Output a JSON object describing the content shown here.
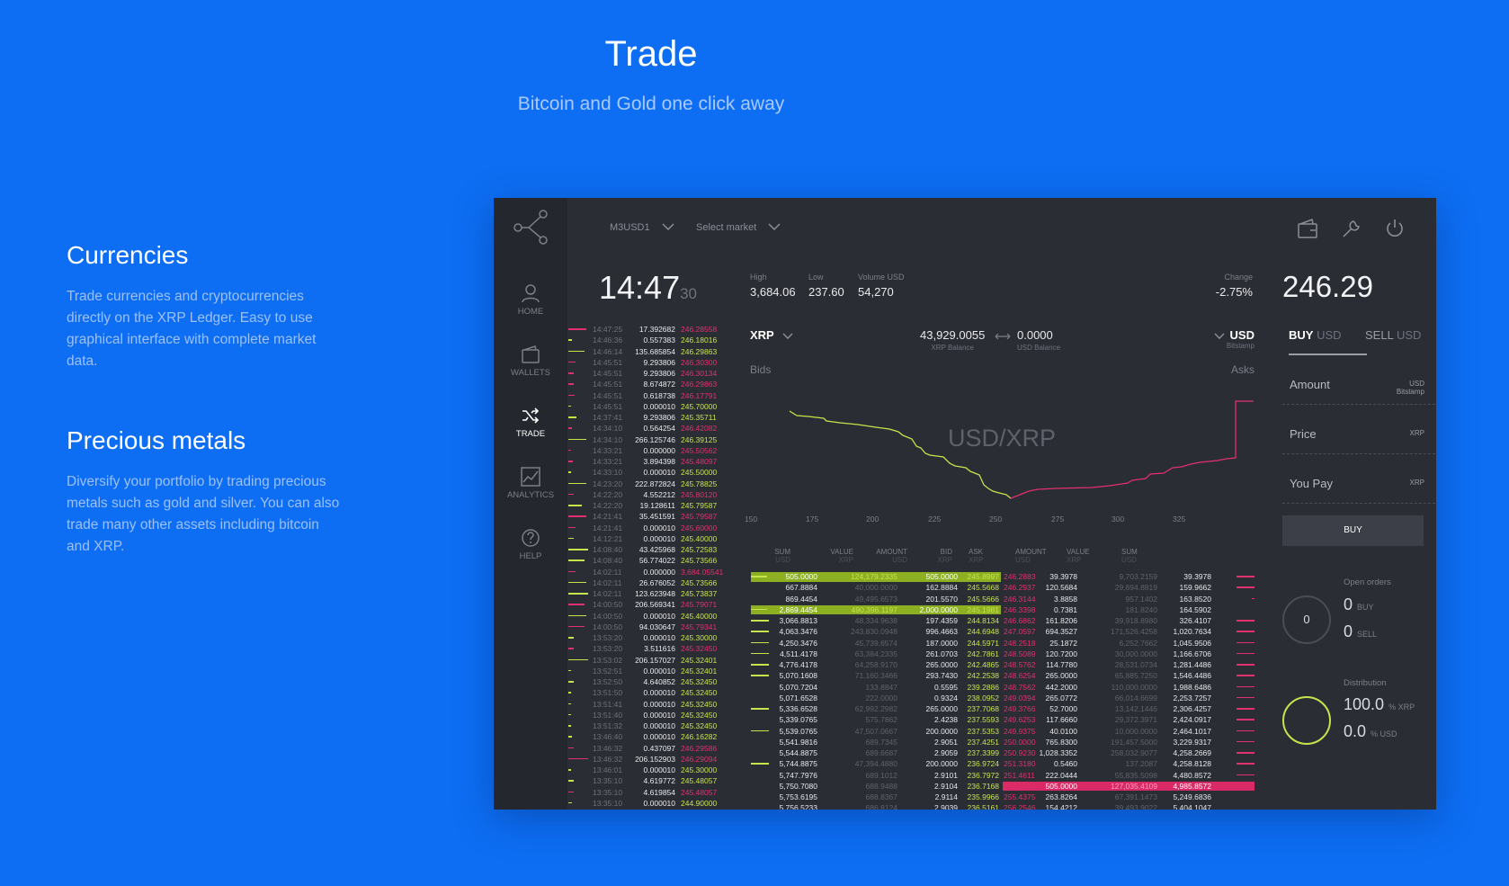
{
  "hero": {
    "title": "Trade",
    "subtitle": "Bitcoin and Gold one click away"
  },
  "features": [
    {
      "title": "Currencies",
      "text": "Trade currencies and cryptocurrencies directly on the XRP Ledger. Easy to use graphical interface with complete market data."
    },
    {
      "title": "Precious metals",
      "text": "Diversify your portfolio by trading precious metals such as gold and silver. You can also trade many other assets including bitcoin and XRP."
    }
  ],
  "app": {
    "sidebar": [
      {
        "label": "HOME",
        "icon": "user-icon"
      },
      {
        "label": "WALLETS",
        "icon": "wallet-icon"
      },
      {
        "label": "TRADE",
        "icon": "shuffle-icon"
      },
      {
        "label": "ANALYTICS",
        "icon": "chart-icon"
      },
      {
        "label": "HELP",
        "icon": "help-icon"
      }
    ],
    "top": {
      "account": "M3USD1",
      "market": "Select market"
    },
    "clock": {
      "time": "14:47",
      "seconds": "30"
    },
    "stats": {
      "high_label": "High",
      "high": "3,684.06",
      "low_label": "Low",
      "low": "237.60",
      "volume_label": "Volume USD",
      "volume": "54,270",
      "change_label": "Change",
      "change": "-2.75%"
    },
    "price": "246.29",
    "pair": {
      "base": "XRP",
      "quote": "USD",
      "quote_sub": "Bitstamp",
      "base_balance": "43,929.0055",
      "base_balance_label": "XRP Balance",
      "quote_balance": "0.0000",
      "quote_balance_label": "USD Balance"
    },
    "chart": {
      "bids": "Bids",
      "asks": "Asks",
      "pair_label": "USD/XRP",
      "ticks": [
        "150",
        "175",
        "200",
        "225",
        "250",
        "275",
        "300",
        "325"
      ]
    },
    "book_headers": {
      "bids": [
        {
          "t": "SUM",
          "s": "USD"
        },
        {
          "t": "VALUE",
          "s": "XRP"
        },
        {
          "t": "AMOUNT",
          "s": "USD"
        },
        {
          "t": "BID",
          "s": "XRP"
        }
      ],
      "asks": [
        {
          "t": "ASK",
          "s": "XRP"
        },
        {
          "t": "AMOUNT",
          "s": "USD"
        },
        {
          "t": "VALUE",
          "s": "XRP"
        },
        {
          "t": "SUM",
          "s": "USD"
        }
      ]
    },
    "trades": [
      [
        "14:47:25",
        "17.392682",
        "246.28558",
        "r"
      ],
      [
        "14:46:36",
        "0.557383",
        "246.18016",
        "g"
      ],
      [
        "14:46:14",
        "135.685854",
        "246.29863",
        "g"
      ],
      [
        "14:45:51",
        "9.293806",
        "246.30300",
        "r"
      ],
      [
        "14:45:51",
        "9.293806",
        "246.30134",
        "r"
      ],
      [
        "14:45:51",
        "8.674872",
        "246.29863",
        "r"
      ],
      [
        "14:45:51",
        "0.618738",
        "246.17791",
        "r"
      ],
      [
        "14:45:51",
        "0.000010",
        "245.70000",
        "g"
      ],
      [
        "14:37:41",
        "9.293806",
        "245.35711",
        "g"
      ],
      [
        "14:34:10",
        "0.564254",
        "246.42082",
        "r"
      ],
      [
        "14:34:10",
        "266.125746",
        "246.39125",
        "g"
      ],
      [
        "14:33:21",
        "0.000000",
        "245.50562",
        "r"
      ],
      [
        "14:33:21",
        "3.894398",
        "245.48097",
        "r"
      ],
      [
        "14:33:10",
        "0.000010",
        "245.50000",
        "g"
      ],
      [
        "14:23:20",
        "222.872824",
        "245.78825",
        "g"
      ],
      [
        "14:22:20",
        "4.552212",
        "245.80120",
        "r"
      ],
      [
        "14:22:20",
        "19.128611",
        "245.79587",
        "g"
      ],
      [
        "14:21:41",
        "35.451591",
        "245.79587",
        "r"
      ],
      [
        "14:21:41",
        "0.000010",
        "245.60000",
        "r"
      ],
      [
        "14:12:21",
        "0.000010",
        "245.40000",
        "g"
      ],
      [
        "14:08:40",
        "43.425968",
        "245.72583",
        "g"
      ],
      [
        "14:08:40",
        "56.774022",
        "245.73566",
        "g"
      ],
      [
        "14:02:11",
        "0.000000",
        "3,684.05541",
        "r"
      ],
      [
        "14:02:11",
        "26.676052",
        "245.73566",
        "g"
      ],
      [
        "14:02:11",
        "123.623948",
        "245.73837",
        "g"
      ],
      [
        "14:00:50",
        "206.569341",
        "245.79071",
        "r"
      ],
      [
        "14:00:50",
        "0.000010",
        "245.40000",
        "g"
      ],
      [
        "14:00:50",
        "94.030647",
        "245.79341",
        "r"
      ],
      [
        "13:53:20",
        "0.000010",
        "245.30000",
        "g"
      ],
      [
        "13:53:20",
        "3.511616",
        "245.32450",
        "r"
      ],
      [
        "13:53:02",
        "206.157027",
        "245.32401",
        "g"
      ],
      [
        "13:52:51",
        "0.000010",
        "245.32401",
        "g"
      ],
      [
        "13:52:50",
        "4.640852",
        "245.32450",
        "g"
      ],
      [
        "13:51:50",
        "0.000010",
        "245.32450",
        "g"
      ],
      [
        "13:51:41",
        "0.000010",
        "245.32450",
        "g"
      ],
      [
        "13:51:40",
        "0.000010",
        "245.32450",
        "g"
      ],
      [
        "13:51:32",
        "0.000010",
        "245.32450",
        "g"
      ],
      [
        "13:46:40",
        "0.000010",
        "246.16282",
        "g"
      ],
      [
        "13:46:32",
        "0.437097",
        "246.29586",
        "r"
      ],
      [
        "13:46:32",
        "206.152903",
        "246.29094",
        "r"
      ],
      [
        "13:46:01",
        "0.000010",
        "245.30000",
        "g"
      ],
      [
        "13:35:10",
        "4.619772",
        "245.48057",
        "g"
      ],
      [
        "13:35:10",
        "4.619854",
        "245.48057",
        "r"
      ],
      [
        "13:35:10",
        "0.000010",
        "244.90000",
        "g"
      ]
    ],
    "bids": [
      [
        "505.0000",
        "124,179.2335",
        "505.0000",
        "245.8997"
      ],
      [
        "667.8884",
        "40,000.0000",
        "162.8884",
        "245.5668"
      ],
      [
        "869.4454",
        "49,495.6573",
        "201.5570",
        "245.5666"
      ],
      [
        "2,869.4454",
        "490,396.1197",
        "2,000.0000",
        "245.1981"
      ],
      [
        "3,066.8813",
        "48,334.9638",
        "197.4359",
        "244.8134"
      ],
      [
        "4,063.3476",
        "243,830.0948",
        "996.4663",
        "244.6948"
      ],
      [
        "4,250.3476",
        "45,739.6574",
        "187.0000",
        "244.5971"
      ],
      [
        "4,511.4178",
        "63,384.2335",
        "261.0703",
        "242.7861"
      ],
      [
        "4,776.4178",
        "64,258.9170",
        "265.0000",
        "242.4865"
      ],
      [
        "5,070.1608",
        "71,160.3466",
        "293.7430",
        "242.2538"
      ],
      [
        "5,070.7204",
        "133.8847",
        "0.5595",
        "239.2886"
      ],
      [
        "5,071.6528",
        "222.0000",
        "0.9324",
        "238.0952"
      ],
      [
        "5,336.6528",
        "62,992.2982",
        "265.0000",
        "237.7068"
      ],
      [
        "5,339.0765",
        "575.7862",
        "2.4238",
        "237.5593"
      ],
      [
        "5,539.0765",
        "47,507.0667",
        "200.0000",
        "237.5353"
      ],
      [
        "5,541.9816",
        "689.7345",
        "2.9051",
        "237.4251"
      ],
      [
        "5,544.8875",
        "689.6687",
        "2.9059",
        "237.3399"
      ],
      [
        "5,744.8875",
        "47,394.4880",
        "200.0000",
        "236.9724"
      ],
      [
        "5,747.7976",
        "689.1012",
        "2.9101",
        "236.7972"
      ],
      [
        "5,750.7080",
        "688.9488",
        "2.9104",
        "236.7168"
      ],
      [
        "5,753.6195",
        "688.8367",
        "2.9114",
        "235.9966"
      ],
      [
        "5,756.5233",
        "686.8124",
        "2.9039",
        "236.5161"
      ]
    ],
    "asks": [
      [
        "246.2883",
        "39.3978",
        "9,703.2159",
        "39.3978"
      ],
      [
        "246.2937",
        "120.5684",
        "29,694.8819",
        "159.9662"
      ],
      [
        "246.3144",
        "3.8858",
        "957.1402",
        "163.8520"
      ],
      [
        "246.3398",
        "0.7381",
        "181.8240",
        "164.5902"
      ],
      [
        "246.6862",
        "161.8206",
        "39,918.8980",
        "326.4107"
      ],
      [
        "247.0597",
        "694.3527",
        "171,526.4258",
        "1,020.7634"
      ],
      [
        "248.2518",
        "25.1872",
        "6,252.7662",
        "1,045.9506"
      ],
      [
        "248.5089",
        "120.7200",
        "30,000.0000",
        "1,166.6706"
      ],
      [
        "248.5762",
        "114.7780",
        "28,531.0734",
        "1,281.4486"
      ],
      [
        "248.6254",
        "265.0000",
        "65,885.7250",
        "1,546.4486"
      ],
      [
        "248.7562",
        "442.2000",
        "110,000.0000",
        "1,988.6486"
      ],
      [
        "249.0394",
        "265.0772",
        "66,014.6699",
        "2,253.7257"
      ],
      [
        "249.3766",
        "52.7000",
        "13,142.1446",
        "2,306.4257"
      ],
      [
        "249.6253",
        "117.6660",
        "29,372.3971",
        "2,424.0917"
      ],
      [
        "249.9375",
        "40.0100",
        "10,000.0000",
        "2,464.1017"
      ],
      [
        "250.0000",
        "765.8300",
        "191,457.5000",
        "3,229.9317"
      ],
      [
        "250.9230",
        "1,028.3352",
        "258,032.9077",
        "4,258.2669"
      ],
      [
        "251.3180",
        "0.5460",
        "137.2087",
        "4,258.8128"
      ],
      [
        "251.4611",
        "222.0444",
        "55,835.5098",
        "4,480.8572"
      ],
      [
        "252.0000",
        "505.0000",
        "127,035.4109",
        "4,985.8572"
      ],
      [
        "255.4375",
        "263.8264",
        "67,391.1473",
        "5,249.6836"
      ],
      [
        "256.2546",
        "154.4212",
        "39,493.9022",
        "5,404.1047"
      ]
    ],
    "order": {
      "buy_tab": "BUY",
      "buy_unit": "USD",
      "sell_tab": "SELL",
      "sell_unit": "USD",
      "amount": "Amount",
      "amount_unit": "USD",
      "amount_sub": "Bitstamp",
      "price": "Price",
      "price_unit": "XRP",
      "you_pay": "You Pay",
      "you_pay_unit": "XRP",
      "buy_button": "BUY"
    },
    "open_orders": {
      "label": "Open orders",
      "total": "0",
      "buy": "0",
      "buy_label": "BUY",
      "sell": "0",
      "sell_label": "SELL"
    },
    "distribution": {
      "label": "Distribution",
      "xrp": "100.0",
      "xrp_label": "% XRP",
      "usd": "0.0",
      "usd_label": "% USD"
    },
    "colors": {
      "accent_green": "#c6e44b",
      "accent_red": "#e0306d",
      "background": "#0d6ef3"
    }
  }
}
